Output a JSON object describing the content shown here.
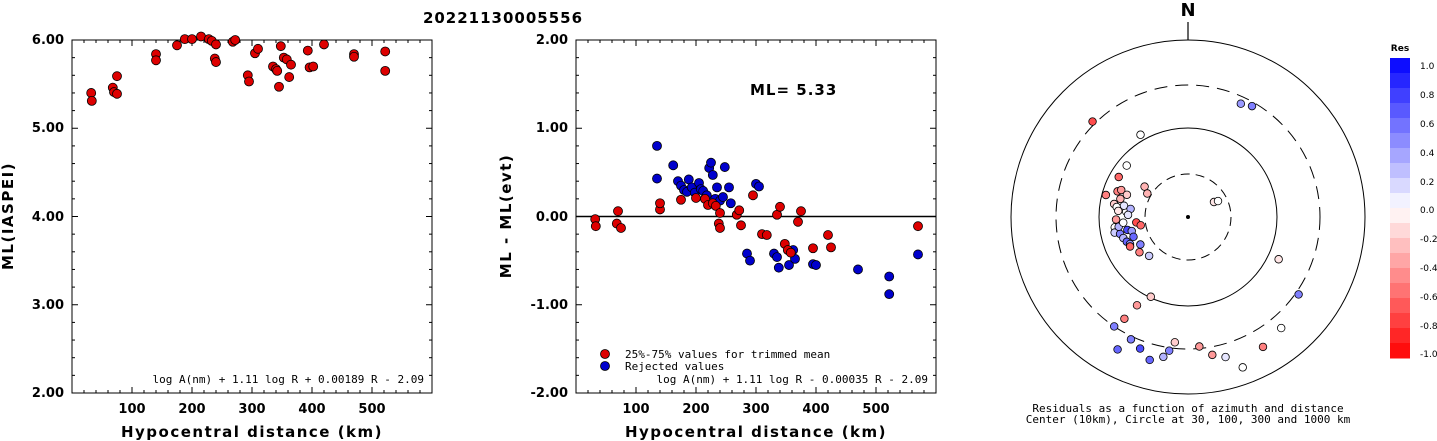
{
  "title": "20221130005556",
  "chart_data": [
    {
      "type": "scatter",
      "xlabel": "Hypocentral distance (km)",
      "ylabel": "ML(IASPEI)",
      "xlim": [
        0,
        600
      ],
      "ylim": [
        2.0,
        6.0
      ],
      "xticks": [
        "100",
        "200",
        "300",
        "400",
        "500"
      ],
      "yticks": [
        "2.00",
        "3.00",
        "4.00",
        "5.00",
        "6.00"
      ],
      "formula": "log A(nm) + 1.11 log R + 0.00189 R - 2.09",
      "series": [
        {
          "color": "#dd0000",
          "x": [
            32,
            33,
            68,
            70,
            75,
            75,
            140,
            140,
            175,
            188,
            200,
            215,
            228,
            233,
            238,
            240,
            240,
            268,
            272,
            293,
            295,
            305,
            310,
            335,
            340,
            342,
            345,
            348,
            353,
            358,
            362,
            365,
            393,
            396,
            402,
            420,
            470,
            470,
            522,
            522
          ],
          "y": [
            5.4,
            5.31,
            5.46,
            5.41,
            5.39,
            5.59,
            5.84,
            5.77,
            5.94,
            6.01,
            6.01,
            6.04,
            6.01,
            5.99,
            5.79,
            5.75,
            5.95,
            5.98,
            6.0,
            5.6,
            5.53,
            5.85,
            5.9,
            5.7,
            5.67,
            5.65,
            5.47,
            5.93,
            5.8,
            5.78,
            5.58,
            5.72,
            5.88,
            5.69,
            5.7,
            5.95,
            5.84,
            5.81,
            5.87,
            5.65
          ]
        }
      ]
    },
    {
      "type": "scatter",
      "xlabel": "Hypocentral distance (km)",
      "ylabel": "ML - ML(evt)",
      "xlim": [
        0,
        600
      ],
      "ylim": [
        -2.0,
        2.0
      ],
      "xticks": [
        "100",
        "200",
        "300",
        "400",
        "500"
      ],
      "yticks": [
        "-2.00",
        "-1.00",
        "0.00",
        "1.00",
        "2.00"
      ],
      "annotation": "ML= 5.33",
      "formula": "log A(nm) + 1.11 log R - 0.00035 R - 2.09",
      "legend": [
        "25%-75% values for trimmed mean",
        "Rejected values"
      ],
      "series": [
        {
          "name": "25%-75% values for trimmed mean",
          "color": "#dd0000",
          "x": [
            32,
            33,
            68,
            70,
            75,
            140,
            140,
            175,
            200,
            215,
            220,
            228,
            233,
            238,
            240,
            240,
            268,
            272,
            275,
            295,
            310,
            318,
            335,
            340,
            348,
            353,
            358,
            370,
            375,
            395,
            420,
            425,
            570
          ],
          "y": [
            -0.03,
            -0.11,
            -0.08,
            0.06,
            -0.13,
            0.08,
            0.15,
            0.19,
            0.21,
            0.2,
            0.13,
            0.15,
            0.12,
            -0.08,
            -0.13,
            0.04,
            0.02,
            0.07,
            -0.1,
            0.24,
            -0.2,
            -0.21,
            0.02,
            0.11,
            -0.31,
            -0.38,
            -0.41,
            -0.06,
            0.06,
            -0.36,
            -0.21,
            -0.35,
            -0.11
          ]
        }
      ]
    },
    {
      "type": "polar-scatter",
      "north_label": "N",
      "colorbar_title": "Res",
      "colorbar_ticks": [
        "1.0",
        "0.8",
        "0.6",
        "0.4",
        "0.2",
        "0.0",
        "-0.2",
        "-0.4",
        "-0.6",
        "-0.8",
        "-1.0"
      ],
      "caption": [
        "Residuals as a function of azimuth and distance",
        "Center (10km), Circle at 30, 100, 300 and 1000 km"
      ]
    }
  ]
}
